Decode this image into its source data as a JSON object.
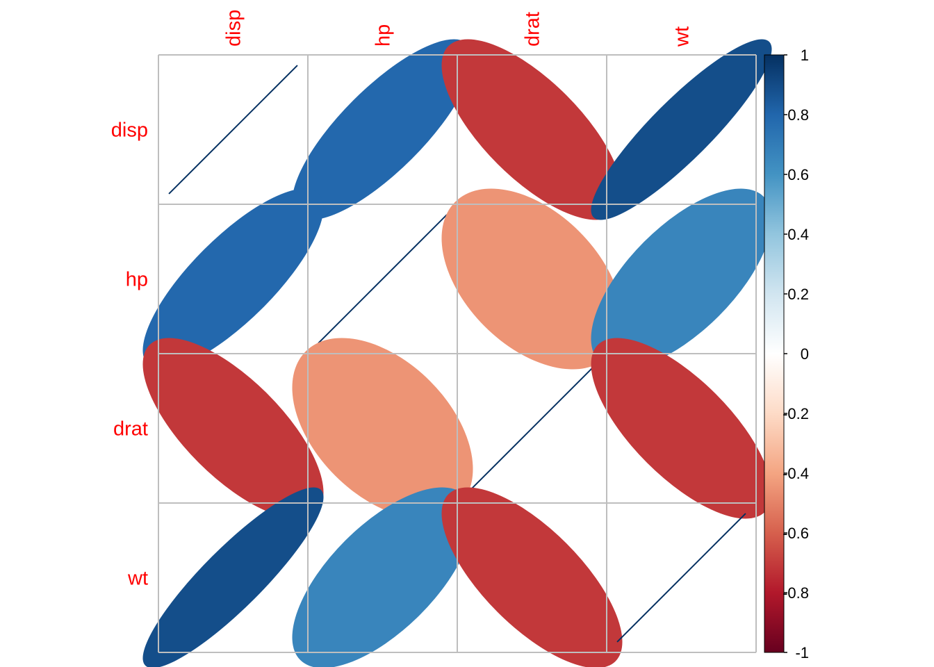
{
  "chart_data": {
    "type": "heatmap",
    "variables": [
      "disp",
      "hp",
      "drat",
      "wt"
    ],
    "matrix": [
      [
        1.0,
        0.79,
        -0.71,
        0.89
      ],
      [
        0.79,
        1.0,
        -0.45,
        0.66
      ],
      [
        -0.71,
        -0.45,
        1.0,
        -0.71
      ],
      [
        0.89,
        0.66,
        -0.71,
        1.0
      ]
    ],
    "method": "ellipse",
    "label_color": "#FF0000",
    "grid_color": "#BEBEBE",
    "colorbar": {
      "position": "right",
      "range": [
        -1,
        1
      ],
      "ticks": [
        "1",
        "0.8",
        "0.6",
        "0.4",
        "0.2",
        "0",
        "-0.2",
        "-0.4",
        "-0.6",
        "-0.8",
        "-1"
      ],
      "colors": [
        "#67001F",
        "#B2182B",
        "#D6604D",
        "#F4A582",
        "#FDDBC7",
        "#FFFFFF",
        "#D1E5F0",
        "#92C5DE",
        "#4393C3",
        "#2166AC",
        "#053061"
      ]
    }
  }
}
